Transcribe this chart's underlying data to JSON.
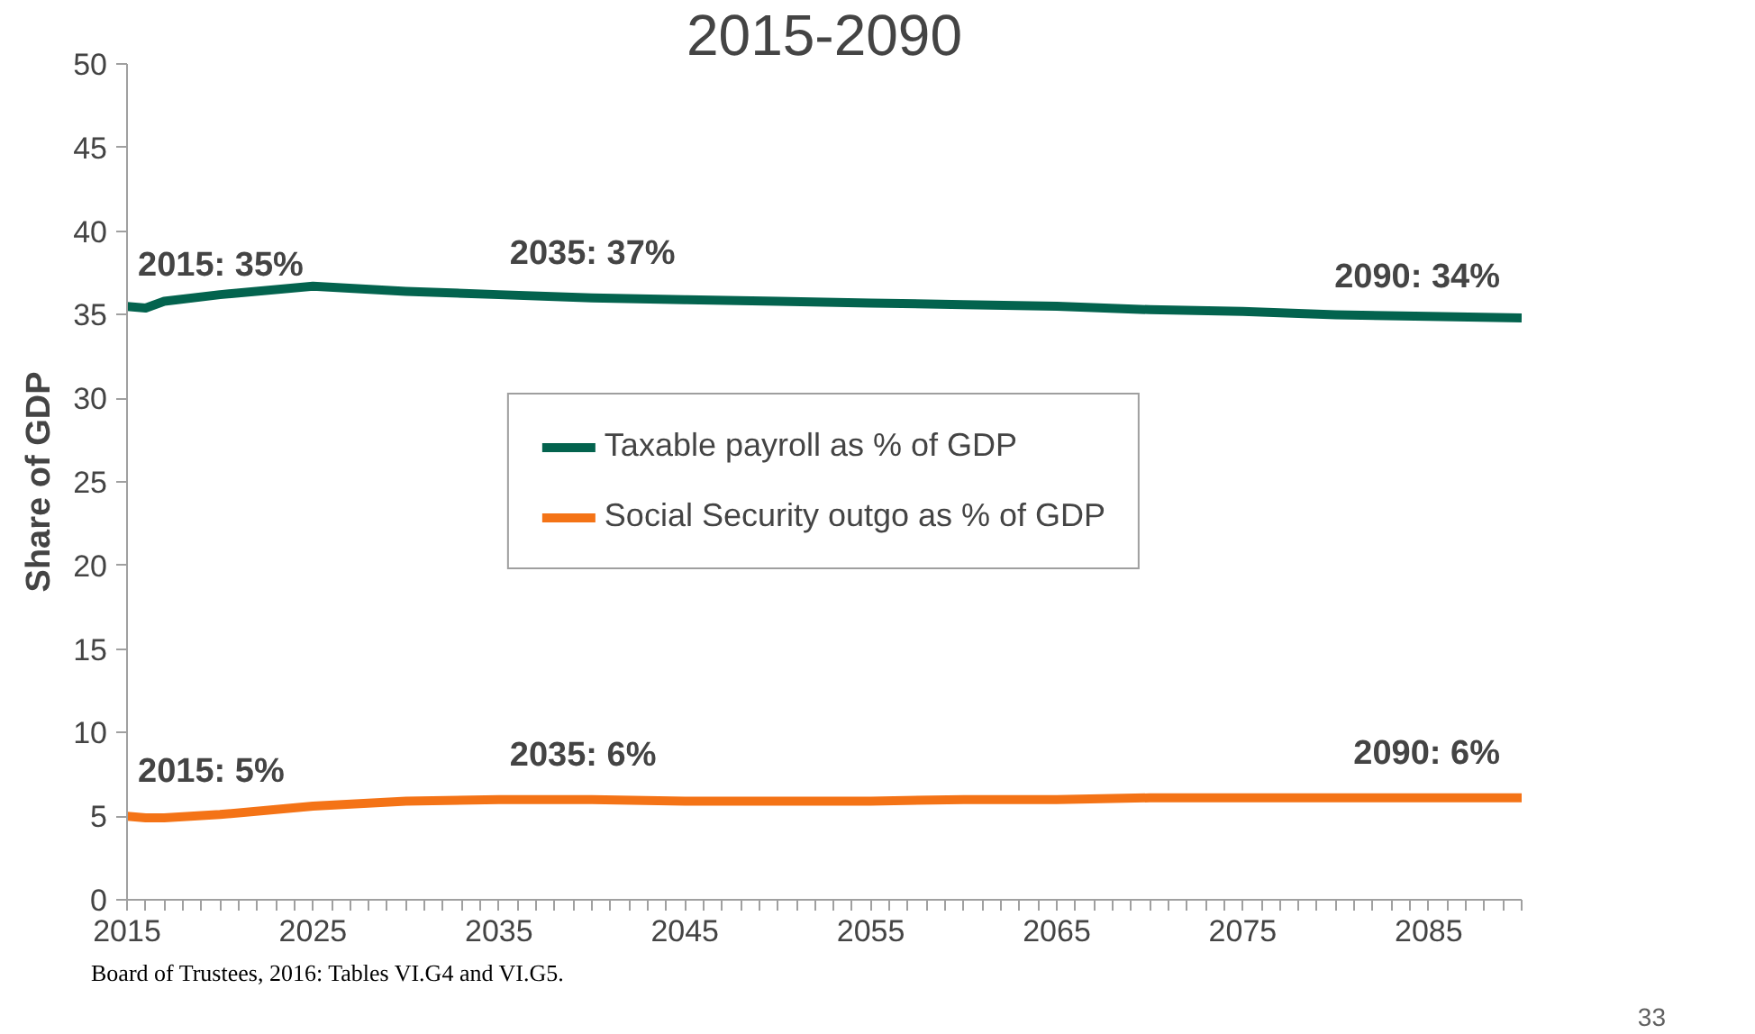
{
  "chart_data": {
    "type": "line",
    "title": "2015-2090",
    "ylabel": "Share of GDP",
    "x": [
      2015,
      2016,
      2017,
      2020,
      2025,
      2030,
      2035,
      2040,
      2045,
      2050,
      2055,
      2060,
      2065,
      2070,
      2075,
      2080,
      2085,
      2090
    ],
    "series": [
      {
        "name": "Taxable payroll as % of GDP",
        "color": "#03634e",
        "values": [
          35.5,
          35.4,
          35.8,
          36.2,
          36.7,
          36.4,
          36.2,
          36.0,
          35.9,
          35.8,
          35.7,
          35.6,
          35.5,
          35.3,
          35.2,
          35.0,
          34.9,
          34.8
        ]
      },
      {
        "name": "Social Security outgo as % of GDP",
        "color": "#f47316",
        "values": [
          5.0,
          4.9,
          4.9,
          5.1,
          5.6,
          5.9,
          6.0,
          6.0,
          5.9,
          5.9,
          5.9,
          6.0,
          6.0,
          6.1,
          6.1,
          6.1,
          6.1,
          6.1
        ]
      }
    ],
    "xlim": [
      2015,
      2090
    ],
    "ylim": [
      0,
      50
    ],
    "xticks": [
      2015,
      {
        "value": 2016,
        "label": null
      },
      {
        "value": 2017,
        "label": null
      },
      {
        "value": 2018,
        "label": null
      },
      {
        "value": 2019,
        "label": null
      },
      {
        "value": 2020,
        "label": null
      },
      {
        "value": 2021,
        "label": null
      },
      {
        "value": 2022,
        "label": null
      },
      {
        "value": 2023,
        "label": null
      },
      {
        "value": 2024,
        "label": null
      },
      2025,
      {
        "value": 2026,
        "label": null
      },
      {
        "value": 2027,
        "label": null
      },
      {
        "value": 2028,
        "label": null
      },
      {
        "value": 2029,
        "label": null
      },
      {
        "value": 2030,
        "label": null
      },
      {
        "value": 2031,
        "label": null
      },
      {
        "value": 2032,
        "label": null
      },
      {
        "value": 2033,
        "label": null
      },
      {
        "value": 2034,
        "label": null
      },
      2035,
      {
        "value": 2036,
        "label": null
      },
      {
        "value": 2037,
        "label": null
      },
      {
        "value": 2038,
        "label": null
      },
      {
        "value": 2039,
        "label": null
      },
      {
        "value": 2040,
        "label": null
      },
      {
        "value": 2041,
        "label": null
      },
      {
        "value": 2042,
        "label": null
      },
      {
        "value": 2043,
        "label": null
      },
      {
        "value": 2044,
        "label": null
      },
      2045,
      {
        "value": 2046,
        "label": null
      },
      {
        "value": 2047,
        "label": null
      },
      {
        "value": 2048,
        "label": null
      },
      {
        "value": 2049,
        "label": null
      },
      {
        "value": 2050,
        "label": null
      },
      {
        "value": 2051,
        "label": null
      },
      {
        "value": 2052,
        "label": null
      },
      {
        "value": 2053,
        "label": null
      },
      {
        "value": 2054,
        "label": null
      },
      2055,
      {
        "value": 2056,
        "label": null
      },
      {
        "value": 2057,
        "label": null
      },
      {
        "value": 2058,
        "label": null
      },
      {
        "value": 2059,
        "label": null
      },
      {
        "value": 2060,
        "label": null
      },
      {
        "value": 2061,
        "label": null
      },
      {
        "value": 2062,
        "label": null
      },
      {
        "value": 2063,
        "label": null
      },
      {
        "value": 2064,
        "label": null
      },
      2065,
      {
        "value": 2066,
        "label": null
      },
      {
        "value": 2067,
        "label": null
      },
      {
        "value": 2068,
        "label": null
      },
      {
        "value": 2069,
        "label": null
      },
      {
        "value": 2070,
        "label": null
      },
      {
        "value": 2071,
        "label": null
      },
      {
        "value": 2072,
        "label": null
      },
      {
        "value": 2073,
        "label": null
      },
      {
        "value": 2074,
        "label": null
      },
      2075,
      {
        "value": 2076,
        "label": null
      },
      {
        "value": 2077,
        "label": null
      },
      {
        "value": 2078,
        "label": null
      },
      {
        "value": 2079,
        "label": null
      },
      {
        "value": 2080,
        "label": null
      },
      {
        "value": 2081,
        "label": null
      },
      {
        "value": 2082,
        "label": null
      },
      {
        "value": 2083,
        "label": null
      },
      {
        "value": 2084,
        "label": null
      },
      2085,
      {
        "value": 2086,
        "label": null
      },
      {
        "value": 2087,
        "label": null
      },
      {
        "value": 2088,
        "label": null
      },
      {
        "value": 2089,
        "label": null
      },
      {
        "value": 2090,
        "label": null
      }
    ],
    "yticks": [
      0,
      5,
      10,
      15,
      20,
      25,
      30,
      35,
      40,
      45,
      50
    ],
    "grid": false,
    "legend": "center",
    "marker": "none",
    "line_style": "solid",
    "annotations": [
      {
        "text": "2015: 35%",
        "x": 2015,
        "y": 35.5
      },
      {
        "text": "2035: 37%",
        "x": 2035,
        "y": 36.2
      },
      {
        "text": "2090: 34%",
        "x": 2090,
        "y": 34.8
      },
      {
        "text": "2015: 5%",
        "x": 2015,
        "y": 5.0
      },
      {
        "text": "2035: 6%",
        "x": 2035,
        "y": 6.0
      },
      {
        "text": "2090: 6%",
        "x": 2090,
        "y": 6.1
      },
      "Board of Trustees, 2016: Tables VI.G4 and VI.G5.",
      "33"
    ]
  }
}
